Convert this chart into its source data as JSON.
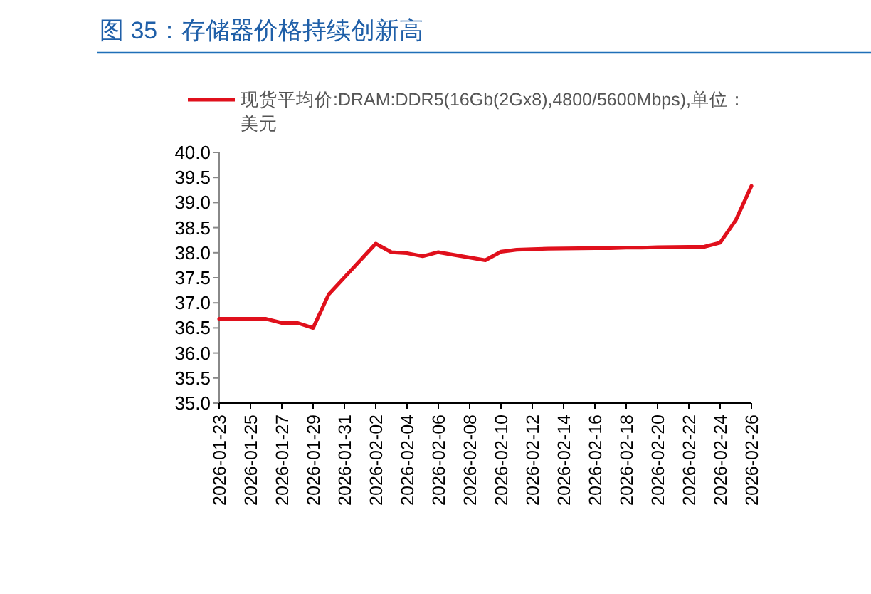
{
  "chart_data": {
    "type": "line",
    "title": "图 35：存储器价格持续创新高",
    "x": [
      "2026-01-23",
      "2026-01-26",
      "2026-01-27",
      "2026-01-28",
      "2026-01-29",
      "2026-01-30",
      "2026-02-02",
      "2026-02-03",
      "2026-02-04",
      "2026-02-05",
      "2026-02-06",
      "2026-02-09",
      "2026-02-10",
      "2026-02-11",
      "2026-02-12",
      "2026-02-13",
      "2026-02-16",
      "2026-02-17",
      "2026-02-18",
      "2026-02-19",
      "2026-02-20",
      "2026-02-23",
      "2026-02-24",
      "2026-02-25",
      "2026-02-26"
    ],
    "series": [
      {
        "name": "现货平均价:DRAM:DDR5(16Gb(2Gx8),4800/5600Mbps),单位：美元",
        "color": "#e0101c",
        "values": [
          36.68,
          36.68,
          36.6,
          36.6,
          36.5,
          37.17,
          38.18,
          38.01,
          37.99,
          37.93,
          38.01,
          37.85,
          38.02,
          38.06,
          38.07,
          38.08,
          38.09,
          38.09,
          38.1,
          38.1,
          38.11,
          38.12,
          38.2,
          38.65,
          39.33
        ]
      }
    ],
    "xlim": [
      "2026-01-23",
      "2026-02-26"
    ],
    "xticks": [
      "2026-01-23",
      "2026-01-25",
      "2026-01-27",
      "2026-01-29",
      "2026-01-31",
      "2026-02-02",
      "2026-02-04",
      "2026-02-06",
      "2026-02-08",
      "2026-02-10",
      "2026-02-12",
      "2026-02-14",
      "2026-02-16",
      "2026-02-18",
      "2026-02-20",
      "2026-02-22",
      "2026-02-24",
      "2026-02-26"
    ],
    "ylim": [
      35,
      40
    ],
    "yticks": [
      {
        "value": 35,
        "label": "35.0"
      },
      {
        "value": 35.5,
        "label": "35.5"
      },
      {
        "value": 36,
        "label": "36.0"
      },
      {
        "value": 36.5,
        "label": "36.5"
      },
      {
        "value": 37,
        "label": "37.0"
      },
      {
        "value": 37.5,
        "label": "37.5"
      },
      {
        "value": 38,
        "label": "38.0"
      },
      {
        "value": 38.5,
        "label": "38.5"
      },
      {
        "value": 39,
        "label": "39.0"
      },
      {
        "value": 39.5,
        "label": "39.5"
      },
      {
        "value": 40,
        "label": "40.0"
      }
    ],
    "legend": "top left",
    "grid": false,
    "marker": "none",
    "line_style": "solid"
  }
}
